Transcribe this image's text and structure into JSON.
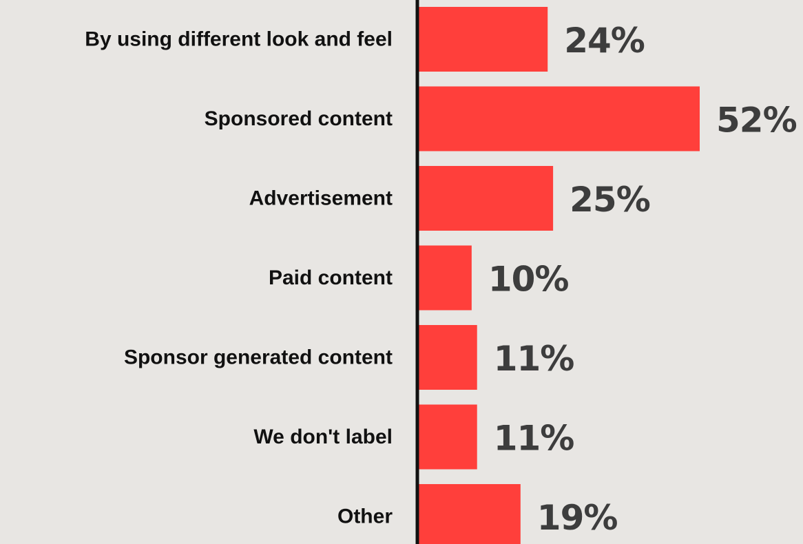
{
  "chart_data": {
    "type": "bar",
    "orientation": "horizontal",
    "categories": [
      "By using different look and feel",
      "Sponsored content",
      "Advertisement",
      "Paid content",
      "Sponsor generated content",
      "We don't label",
      "Other"
    ],
    "values": [
      24,
      52,
      25,
      10,
      11,
      11,
      19
    ],
    "value_labels": [
      "24%",
      "52%",
      "25%",
      "10%",
      "11%",
      "11%",
      "19%"
    ],
    "unit": "%",
    "title": "",
    "xlabel": "",
    "ylabel": "",
    "xlim": [
      0,
      52
    ],
    "grid": false,
    "legend": "none",
    "colors": {
      "bar": "#ff3f3b",
      "axis": "#111111",
      "background": "#e8e6e3",
      "category_text": "#111111",
      "value_text": "#3d3d3d"
    }
  }
}
